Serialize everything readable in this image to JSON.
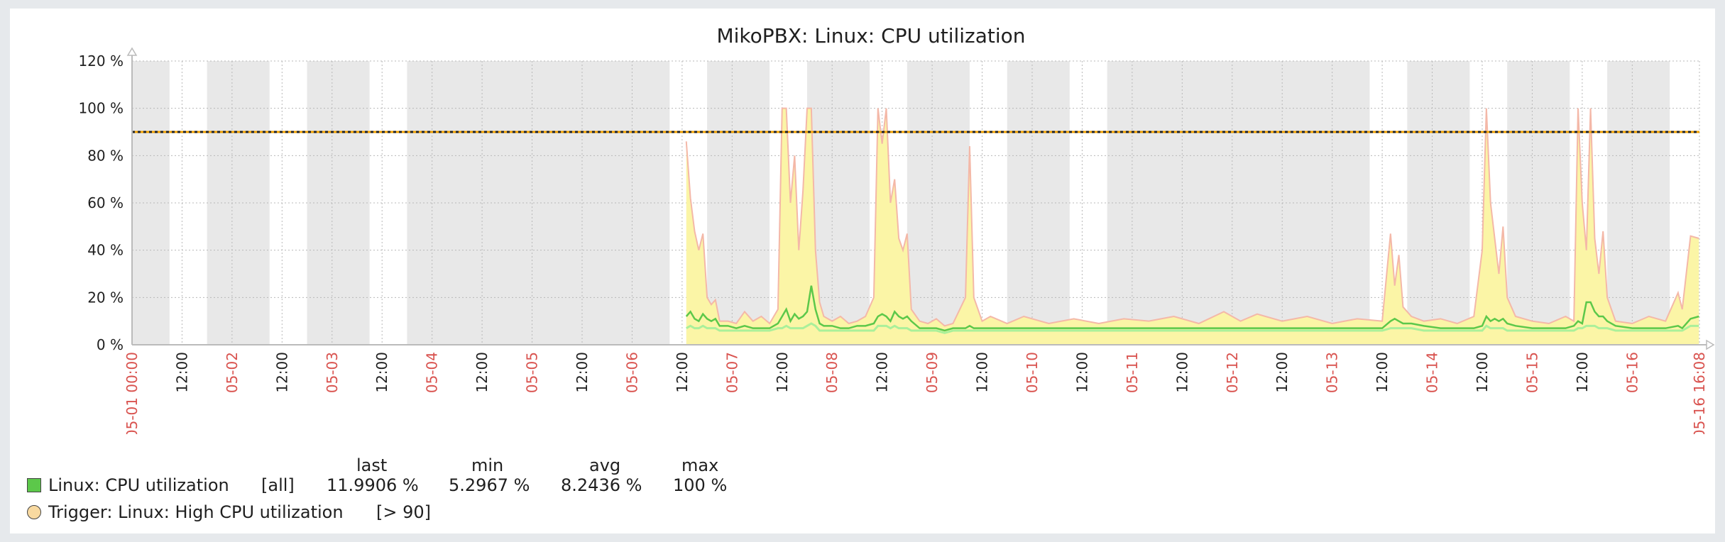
{
  "chart_data": {
    "type": "area",
    "title": "MikoPBX: Linux: CPU utilization",
    "y_axis": {
      "min": 0,
      "max": 120,
      "tick_step": 20,
      "unit": " %"
    },
    "y_ticks": [
      "0 %",
      "20 %",
      "40 %",
      "60 %",
      "80 %",
      "100 %",
      "120 %"
    ],
    "x_axis": {
      "start": "2024-05-01 00:00",
      "end": "2024-05-16 16:08"
    },
    "x_tick_labels": [
      {
        "t": 0,
        "label": "05-01 00:00",
        "major": true
      },
      {
        "t": 12,
        "label": "12:00",
        "major": false
      },
      {
        "t": 24,
        "label": "05-02",
        "major": true
      },
      {
        "t": 36,
        "label": "12:00",
        "major": false
      },
      {
        "t": 48,
        "label": "05-03",
        "major": true
      },
      {
        "t": 60,
        "label": "12:00",
        "major": false
      },
      {
        "t": 72,
        "label": "05-04",
        "major": true
      },
      {
        "t": 84,
        "label": "12:00",
        "major": false
      },
      {
        "t": 96,
        "label": "05-05",
        "major": true
      },
      {
        "t": 108,
        "label": "12:00",
        "major": false
      },
      {
        "t": 120,
        "label": "05-06",
        "major": true
      },
      {
        "t": 132,
        "label": "12:00",
        "major": false
      },
      {
        "t": 144,
        "label": "05-07",
        "major": true
      },
      {
        "t": 156,
        "label": "12:00",
        "major": false
      },
      {
        "t": 168,
        "label": "05-08",
        "major": true
      },
      {
        "t": 180,
        "label": "12:00",
        "major": false
      },
      {
        "t": 192,
        "label": "05-09",
        "major": true
      },
      {
        "t": 204,
        "label": "12:00",
        "major": false
      },
      {
        "t": 216,
        "label": "05-10",
        "major": true
      },
      {
        "t": 228,
        "label": "12:00",
        "major": false
      },
      {
        "t": 240,
        "label": "05-11",
        "major": true
      },
      {
        "t": 252,
        "label": "12:00",
        "major": false
      },
      {
        "t": 264,
        "label": "05-12",
        "major": true
      },
      {
        "t": 276,
        "label": "12:00",
        "major": false
      },
      {
        "t": 288,
        "label": "05-13",
        "major": true
      },
      {
        "t": 300,
        "label": "12:00",
        "major": false
      },
      {
        "t": 312,
        "label": "05-14",
        "major": true
      },
      {
        "t": 324,
        "label": "12:00",
        "major": false
      },
      {
        "t": 336,
        "label": "05-15",
        "major": true
      },
      {
        "t": 348,
        "label": "12:00",
        "major": false
      },
      {
        "t": 360,
        "label": "05-16",
        "major": true
      },
      {
        "t": 376.13,
        "label": "05-16 16:08",
        "major": true
      }
    ],
    "night_bands_hours": [
      [
        0,
        9
      ],
      [
        18,
        33
      ],
      [
        42,
        57
      ],
      [
        66,
        129
      ],
      [
        138,
        153
      ],
      [
        162,
        177
      ],
      [
        186,
        201
      ],
      [
        210,
        225
      ],
      [
        234,
        297
      ],
      [
        306,
        321
      ],
      [
        330,
        345
      ],
      [
        354,
        369
      ]
    ],
    "threshold": {
      "value": 90,
      "color": "#f0a000"
    },
    "series": [
      {
        "name": "Linux: CPU utilization",
        "color": "#5cc84a",
        "max_color": "#f4b8a8",
        "fill_color": "#fbf5a6",
        "min_color": "#aaf09a",
        "points": [
          [
            133,
            12,
            86,
            7
          ],
          [
            134,
            14,
            62,
            8
          ],
          [
            135,
            11,
            48,
            7
          ],
          [
            136,
            10,
            40,
            7
          ],
          [
            137,
            13,
            47,
            8
          ],
          [
            138,
            11,
            20,
            7
          ],
          [
            139,
            10,
            17,
            7
          ],
          [
            140,
            11,
            19,
            7
          ],
          [
            141,
            8,
            10,
            6
          ],
          [
            143,
            8,
            10,
            6
          ],
          [
            145,
            7,
            9,
            6
          ],
          [
            147,
            8,
            14,
            6
          ],
          [
            149,
            7,
            10,
            6
          ],
          [
            151,
            7,
            12,
            6
          ],
          [
            153,
            7,
            9,
            6
          ],
          [
            155,
            9,
            15,
            7
          ],
          [
            156,
            12,
            100,
            7
          ],
          [
            157,
            15,
            100,
            8
          ],
          [
            158,
            10,
            60,
            7
          ],
          [
            159,
            13,
            80,
            7
          ],
          [
            160,
            11,
            40,
            7
          ],
          [
            161,
            12,
            65,
            7
          ],
          [
            162,
            14,
            100,
            8
          ],
          [
            163,
            25,
            100,
            9
          ],
          [
            164,
            15,
            40,
            8
          ],
          [
            165,
            9,
            18,
            6
          ],
          [
            166,
            8,
            12,
            6
          ],
          [
            168,
            8,
            10,
            6
          ],
          [
            170,
            7,
            12,
            6
          ],
          [
            172,
            7,
            9,
            6
          ],
          [
            174,
            8,
            10,
            6
          ],
          [
            176,
            8,
            12,
            6
          ],
          [
            178,
            9,
            20,
            6
          ],
          [
            179,
            12,
            100,
            8
          ],
          [
            180,
            13,
            85,
            8
          ],
          [
            181,
            12,
            100,
            8
          ],
          [
            182,
            10,
            60,
            7
          ],
          [
            183,
            14,
            70,
            8
          ],
          [
            184,
            12,
            45,
            7
          ],
          [
            185,
            11,
            40,
            7
          ],
          [
            186,
            12,
            47,
            7
          ],
          [
            187,
            10,
            15,
            6
          ],
          [
            189,
            7,
            10,
            6
          ],
          [
            191,
            7,
            9,
            6
          ],
          [
            193,
            7,
            11,
            6
          ],
          [
            195,
            6,
            8,
            5
          ],
          [
            197,
            7,
            9,
            6
          ],
          [
            200,
            7,
            20,
            6
          ],
          [
            201,
            8,
            84,
            6
          ],
          [
            202,
            7,
            20,
            6
          ],
          [
            204,
            7,
            10,
            6
          ],
          [
            206,
            7,
            12,
            6
          ],
          [
            210,
            7,
            9,
            6
          ],
          [
            214,
            7,
            12,
            6
          ],
          [
            220,
            7,
            9,
            6
          ],
          [
            226,
            7,
            11,
            6
          ],
          [
            232,
            7,
            9,
            6
          ],
          [
            238,
            7,
            11,
            6
          ],
          [
            244,
            7,
            10,
            6
          ],
          [
            250,
            7,
            12,
            6
          ],
          [
            256,
            7,
            9,
            6
          ],
          [
            262,
            7,
            14,
            6
          ],
          [
            266,
            7,
            10,
            6
          ],
          [
            270,
            7,
            13,
            6
          ],
          [
            276,
            7,
            10,
            6
          ],
          [
            282,
            7,
            12,
            6
          ],
          [
            288,
            7,
            9,
            6
          ],
          [
            294,
            7,
            11,
            6
          ],
          [
            300,
            7,
            10,
            6
          ],
          [
            302,
            10,
            47,
            7
          ],
          [
            303,
            11,
            25,
            7
          ],
          [
            304,
            10,
            38,
            7
          ],
          [
            305,
            9,
            16,
            7
          ],
          [
            307,
            9,
            12,
            7
          ],
          [
            310,
            8,
            10,
            6
          ],
          [
            314,
            7,
            11,
            6
          ],
          [
            318,
            7,
            9,
            6
          ],
          [
            322,
            7,
            12,
            6
          ],
          [
            324,
            8,
            40,
            6
          ],
          [
            325,
            12,
            100,
            8
          ],
          [
            326,
            10,
            60,
            7
          ],
          [
            327,
            11,
            45,
            7
          ],
          [
            328,
            10,
            30,
            7
          ],
          [
            329,
            11,
            50,
            7
          ],
          [
            330,
            9,
            20,
            6
          ],
          [
            332,
            8,
            12,
            6
          ],
          [
            336,
            7,
            10,
            6
          ],
          [
            340,
            7,
            9,
            6
          ],
          [
            344,
            7,
            12,
            6
          ],
          [
            346,
            8,
            10,
            6
          ],
          [
            347,
            10,
            100,
            7
          ],
          [
            348,
            9,
            60,
            7
          ],
          [
            349,
            18,
            40,
            8
          ],
          [
            350,
            18,
            100,
            8
          ],
          [
            351,
            14,
            45,
            8
          ],
          [
            352,
            12,
            30,
            7
          ],
          [
            353,
            12,
            48,
            7
          ],
          [
            354,
            10,
            20,
            7
          ],
          [
            356,
            8,
            10,
            6
          ],
          [
            360,
            7,
            9,
            6
          ],
          [
            364,
            7,
            12,
            6
          ],
          [
            368,
            7,
            10,
            6
          ],
          [
            371,
            8,
            22,
            6
          ],
          [
            372,
            7,
            15,
            6
          ],
          [
            374,
            11,
            46,
            8
          ],
          [
            376,
            12,
            45,
            8
          ]
        ],
        "base_before": {
          "avg": 0,
          "note": ""
        }
      }
    ]
  },
  "legend": {
    "headers": {
      "last": "last",
      "min": "min",
      "avg": "avg",
      "max": "max"
    },
    "series_row": {
      "name": "Linux: CPU utilization",
      "func": "[all]",
      "last": "11.9906 %",
      "min": "5.2967 %",
      "avg": "8.2436 %",
      "max": "100 %",
      "color": "#5cc84a"
    },
    "trigger_row": {
      "name": "Trigger: Linux: High CPU utilization",
      "condition": "[> 90]",
      "color": "#f8d9a0"
    }
  }
}
